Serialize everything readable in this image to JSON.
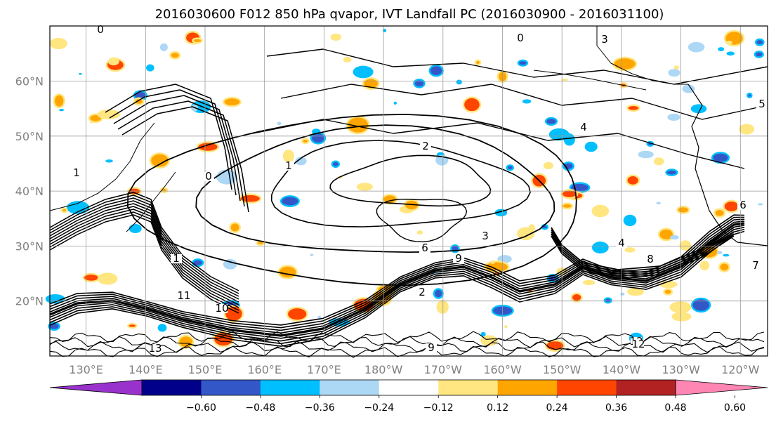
{
  "title": "2016030600 F012 850 hPa qvapor, IVT Landfall PC (2016030900 - 2016031100)",
  "map": {
    "lat_labels": [
      "60°N",
      "50°N",
      "40°N",
      "30°N",
      "20°N"
    ],
    "lon_labels": [
      "130°E",
      "140°E",
      "150°E",
      "160°E",
      "170°E",
      "180°W",
      "170°W",
      "160°W",
      "150°W",
      "140°W",
      "130°W",
      "120°W"
    ],
    "lat_range": [
      10,
      70
    ],
    "lon_range": [
      124,
      246
    ],
    "gridlines": true,
    "contour_labels": [
      "0",
      "0",
      "0",
      "1",
      "1",
      "1",
      "2",
      "2",
      "3",
      "3",
      "4",
      "4",
      "5",
      "6",
      "6",
      "7",
      "8",
      "9",
      "9",
      "10",
      "11",
      "12",
      "12",
      "13"
    ]
  },
  "colorbar": {
    "tick_labels": [
      "−0.60",
      "−0.48",
      "−0.36",
      "−0.24",
      "−0.12",
      "0.12",
      "0.24",
      "0.36",
      "0.48",
      "0.60"
    ],
    "colors": [
      "#9932cc",
      "#00008b",
      "#3457c8",
      "#00bfff",
      "#add8f5",
      "#ffffff",
      "#ffe680",
      "#ffa500",
      "#ff4500",
      "#b22222",
      "#ff85b3"
    ],
    "extend": "both"
  }
}
